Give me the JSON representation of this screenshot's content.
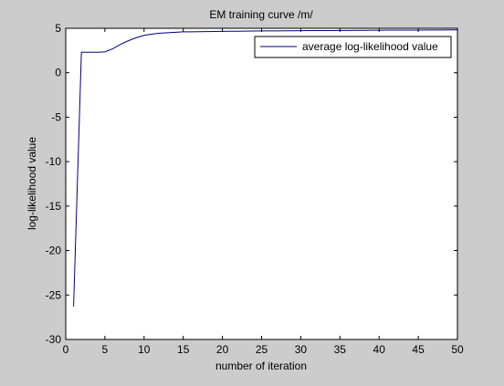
{
  "chart_data": {
    "type": "line",
    "title": "EM training curve /m/",
    "xlabel": "number of iteration",
    "ylabel": "log-likelihood value",
    "xlim": [
      0,
      50
    ],
    "ylim": [
      -30,
      5
    ],
    "xticks": [
      0,
      5,
      10,
      15,
      20,
      25,
      30,
      35,
      40,
      45,
      50
    ],
    "yticks": [
      5,
      0,
      -5,
      -10,
      -15,
      -20,
      -25,
      -30
    ],
    "grid": false,
    "legend_position": "top-right",
    "series": [
      {
        "name": "average log-likelihood value",
        "color": "#00007f",
        "x": [
          1,
          2,
          3,
          4,
          5,
          6,
          7,
          8,
          9,
          10,
          11,
          12,
          13,
          14,
          15,
          16,
          17,
          18,
          19,
          20,
          21,
          22,
          23,
          24,
          25,
          26,
          27,
          28,
          29,
          30,
          31,
          32,
          33,
          34,
          35,
          36,
          37,
          38,
          39,
          40,
          41,
          42,
          43,
          44,
          45,
          46,
          47,
          48,
          49,
          50
        ],
        "values": [
          -26.3,
          2.3,
          2.3,
          2.3,
          2.35,
          2.7,
          3.2,
          3.6,
          3.95,
          4.2,
          4.35,
          4.45,
          4.5,
          4.55,
          4.6,
          4.6,
          4.62,
          4.63,
          4.64,
          4.65,
          4.66,
          4.67,
          4.68,
          4.69,
          4.7,
          4.7,
          4.71,
          4.72,
          4.72,
          4.73,
          4.74,
          4.74,
          4.75,
          4.75,
          4.76,
          4.76,
          4.77,
          4.77,
          4.78,
          4.78,
          4.79,
          4.79,
          4.8,
          4.8,
          4.8,
          4.81,
          4.81,
          4.81,
          4.82,
          4.82
        ]
      }
    ]
  },
  "colors": {
    "figure_background": "#cccccc",
    "axes_background": "#ffffff",
    "axes_edge": "#000000"
  }
}
